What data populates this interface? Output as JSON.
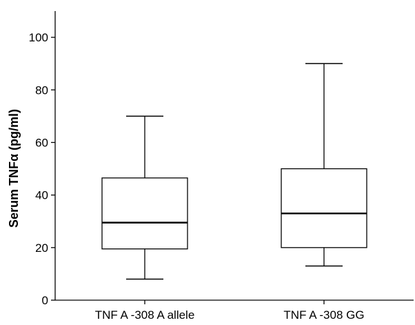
{
  "chart_data": {
    "type": "boxplot",
    "title": "",
    "xlabel": "",
    "ylabel": "Serum TNFα (pg/ml)",
    "ylim": [
      0,
      110
    ],
    "yticks": [
      0,
      20,
      40,
      60,
      80,
      100
    ],
    "grid": false,
    "categories": [
      "TNF A -308 A allele",
      "TNF A -308 GG"
    ],
    "boxes": [
      {
        "category": "TNF A -308 A allele",
        "min": 8,
        "q1": 19.5,
        "median": 29.5,
        "q3": 46.5,
        "max": 70
      },
      {
        "category": "TNF A -308 GG",
        "min": 13,
        "q1": 20,
        "median": 33,
        "q3": 50,
        "max": 90
      }
    ]
  }
}
